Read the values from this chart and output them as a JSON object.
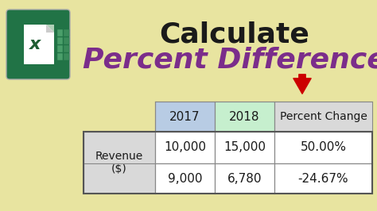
{
  "bg_color": "#e8e4a0",
  "title1": "Calculate",
  "title1_color": "#1a1a1a",
  "title2": "Percent Difference",
  "title2_color": "#7b2d8b",
  "header_bg_col1": "#b8cce4",
  "header_bg_col2": "#c6efce",
  "header_bg_col3": "#d9d9d9",
  "row_header_bg": "#d9d9d9",
  "cell_bg": "#ffffff",
  "arrow_color": "#cc0000",
  "excel_green_dark": "#1e5c32",
  "excel_green_mid": "#217346",
  "excel_green_light": "#2e8b57",
  "excel_x_color": "#ffffff",
  "table_headers": [
    "2017",
    "2018",
    "Percent Change"
  ],
  "row_label": "Revenue\n($)",
  "row1_data": [
    "10,000",
    "15,000",
    "50.00%"
  ],
  "row2_data": [
    "9,000",
    "6,780",
    "-24.67%"
  ]
}
